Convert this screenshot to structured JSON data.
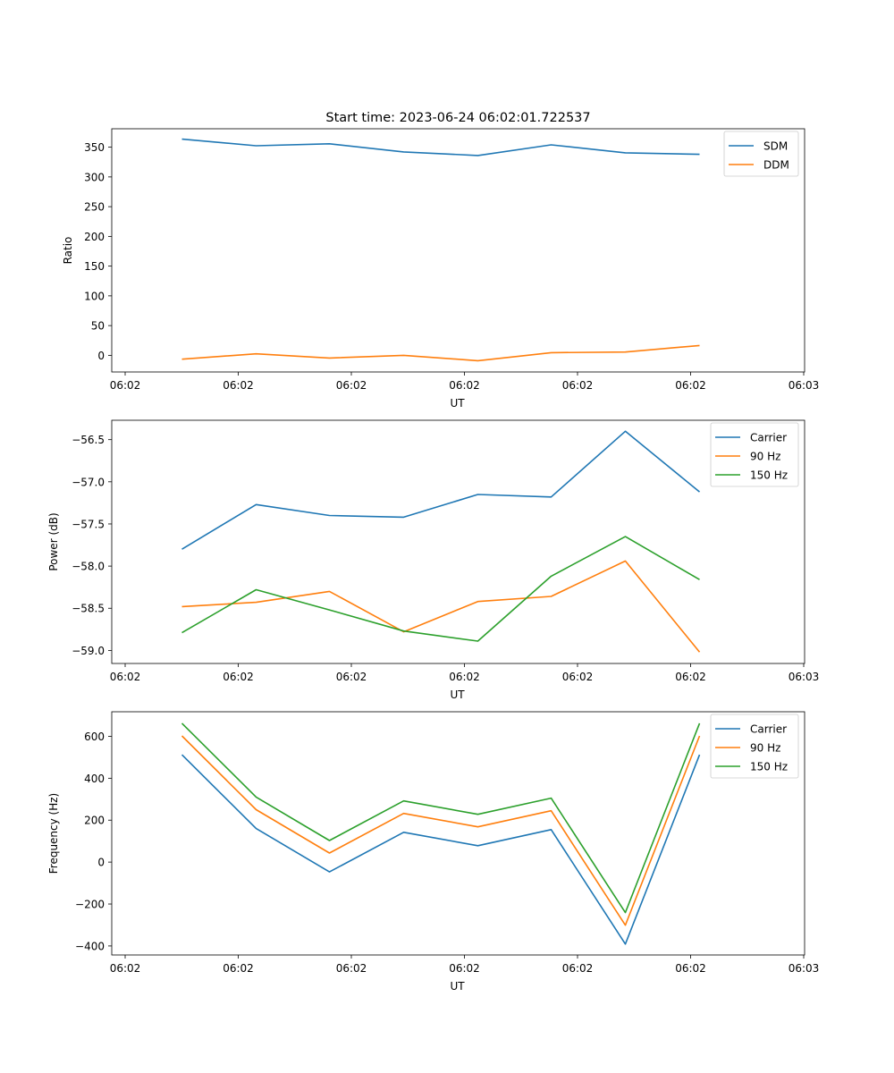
{
  "chart_data": [
    {
      "type": "line",
      "title": "Start time: 2023-06-24 06:02:01.722537",
      "xlabel": "UT",
      "ylabel": "Ratio",
      "xticklabels": [
        "06:02",
        "06:02",
        "06:02",
        "06:02",
        "06:02",
        "06:02",
        "06:03"
      ],
      "yticks": [
        0,
        50,
        100,
        150,
        200,
        250,
        300,
        350
      ],
      "ylim": [
        -28,
        381
      ],
      "legend": "top-right",
      "series": [
        {
          "name": "SDM",
          "color": "#1f77b4",
          "values": [
            363.5,
            352.5,
            355.8,
            342.0,
            336.0,
            354.0,
            340.5,
            338.0
          ]
        },
        {
          "name": "DDM",
          "color": "#ff7f0e",
          "values": [
            -6.5,
            2.5,
            -4.5,
            0.0,
            -9.0,
            4.5,
            5.5,
            16.5
          ]
        }
      ]
    },
    {
      "type": "line",
      "title": "",
      "xlabel": "UT",
      "ylabel": "Power (dB)",
      "xticklabels": [
        "06:02",
        "06:02",
        "06:02",
        "06:02",
        "06:02",
        "06:02",
        "06:03"
      ],
      "yticks": [
        -59.0,
        -58.5,
        -58.0,
        -57.5,
        -57.0,
        -56.5
      ],
      "yticklabels": [
        "−59.0",
        "−58.5",
        "−58.0",
        "−57.5",
        "−57.0",
        "−56.5"
      ],
      "ylim": [
        -59.155,
        -56.27
      ],
      "legend": "top-right",
      "series": [
        {
          "name": "Carrier",
          "color": "#1f77b4",
          "values": [
            -57.8,
            -57.27,
            -57.4,
            -57.42,
            -57.15,
            -57.18,
            -56.4,
            -57.12
          ]
        },
        {
          "name": "90 Hz",
          "color": "#ff7f0e",
          "values": [
            -58.48,
            -58.43,
            -58.3,
            -58.78,
            -58.42,
            -58.36,
            -57.94,
            -59.02
          ]
        },
        {
          "name": "150 Hz",
          "color": "#2ca02c",
          "values": [
            -58.79,
            -58.28,
            -58.52,
            -58.77,
            -58.89,
            -58.12,
            -57.65,
            -58.16
          ]
        }
      ]
    },
    {
      "type": "line",
      "title": "",
      "xlabel": "UT",
      "ylabel": "Frequency (Hz)",
      "xticklabels": [
        "06:02",
        "06:02",
        "06:02",
        "06:02",
        "06:02",
        "06:02",
        "06:03"
      ],
      "yticks": [
        -400,
        -200,
        0,
        200,
        400,
        600
      ],
      "yticklabels": [
        "−400",
        "−200",
        "0",
        "200",
        "400",
        "600"
      ],
      "ylim": [
        -443,
        717
      ],
      "legend": "top-right",
      "series": [
        {
          "name": "Carrier",
          "color": "#1f77b4",
          "values": [
            512,
            160,
            -47,
            142,
            78,
            155,
            -391,
            512
          ]
        },
        {
          "name": "90 Hz",
          "color": "#ff7f0e",
          "values": [
            602,
            250,
            43,
            232,
            168,
            245,
            -301,
            602
          ]
        },
        {
          "name": "150 Hz",
          "color": "#2ca02c",
          "values": [
            662,
            310,
            103,
            292,
            228,
            305,
            -241,
            662
          ]
        }
      ]
    }
  ]
}
